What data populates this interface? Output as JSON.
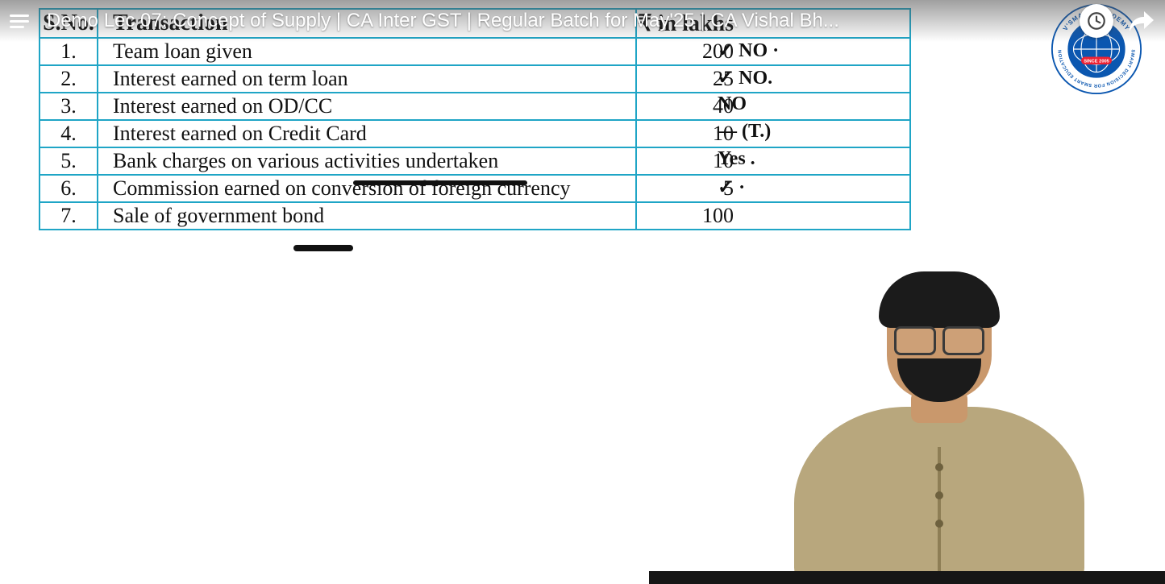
{
  "player": {
    "title": "Demo Lec 07: Concept of Supply | CA Inter GST | Regular Batch for May'25 | CA Vishal Bh..."
  },
  "brand": {
    "outer_text_top": "V'SMART ACADEMY",
    "outer_text_bottom": "SMART DECISION FOR SMART EDUCATION",
    "since": "SINCE 2005",
    "ring_color": "#0b57b0",
    "globe_color": "#0b57b0"
  },
  "table": {
    "border_color": "#1fa5c6",
    "text_color": "#111111",
    "font_family": "Georgia, 'Times New Roman', serif",
    "font_size_pt": 20,
    "header": {
      "sn": "S.No.",
      "tx": "Transaction",
      "val": "₹ in lakhs"
    },
    "rows": [
      {
        "sn": "1.",
        "tx": "Team loan given",
        "val": "200",
        "annot": "✓  NO ·"
      },
      {
        "sn": "2.",
        "tx": "Interest earned on term loan",
        "val": "25",
        "annot": "✓ NO."
      },
      {
        "sn": "3.",
        "tx": "Interest earned on OD/CC",
        "val": "40",
        "annot": "NO"
      },
      {
        "sn": "4.",
        "tx": "Interest earned on Credit Card",
        "val": "10",
        "annot": "— (T.)"
      },
      {
        "sn": "5.",
        "tx": "Bank charges on various activities undertaken",
        "val": "10",
        "annot": "Yes ."
      },
      {
        "sn": "6.",
        "tx": "Commission earned on conversion of foreign currency",
        "val": "5",
        "annot": "✓ ·"
      },
      {
        "sn": "7.",
        "tx": "Sale of government bond",
        "val": "100",
        "annot": ""
      }
    ],
    "underlines": [
      {
        "row_index": 4,
        "under_text_segment": "activities undertaken"
      },
      {
        "row_index": 6,
        "under_text_segment": "government"
      }
    ]
  },
  "colors": {
    "page_bg": "#ffffff",
    "overlay_text": "#ffffff",
    "ink": "#111111"
  }
}
